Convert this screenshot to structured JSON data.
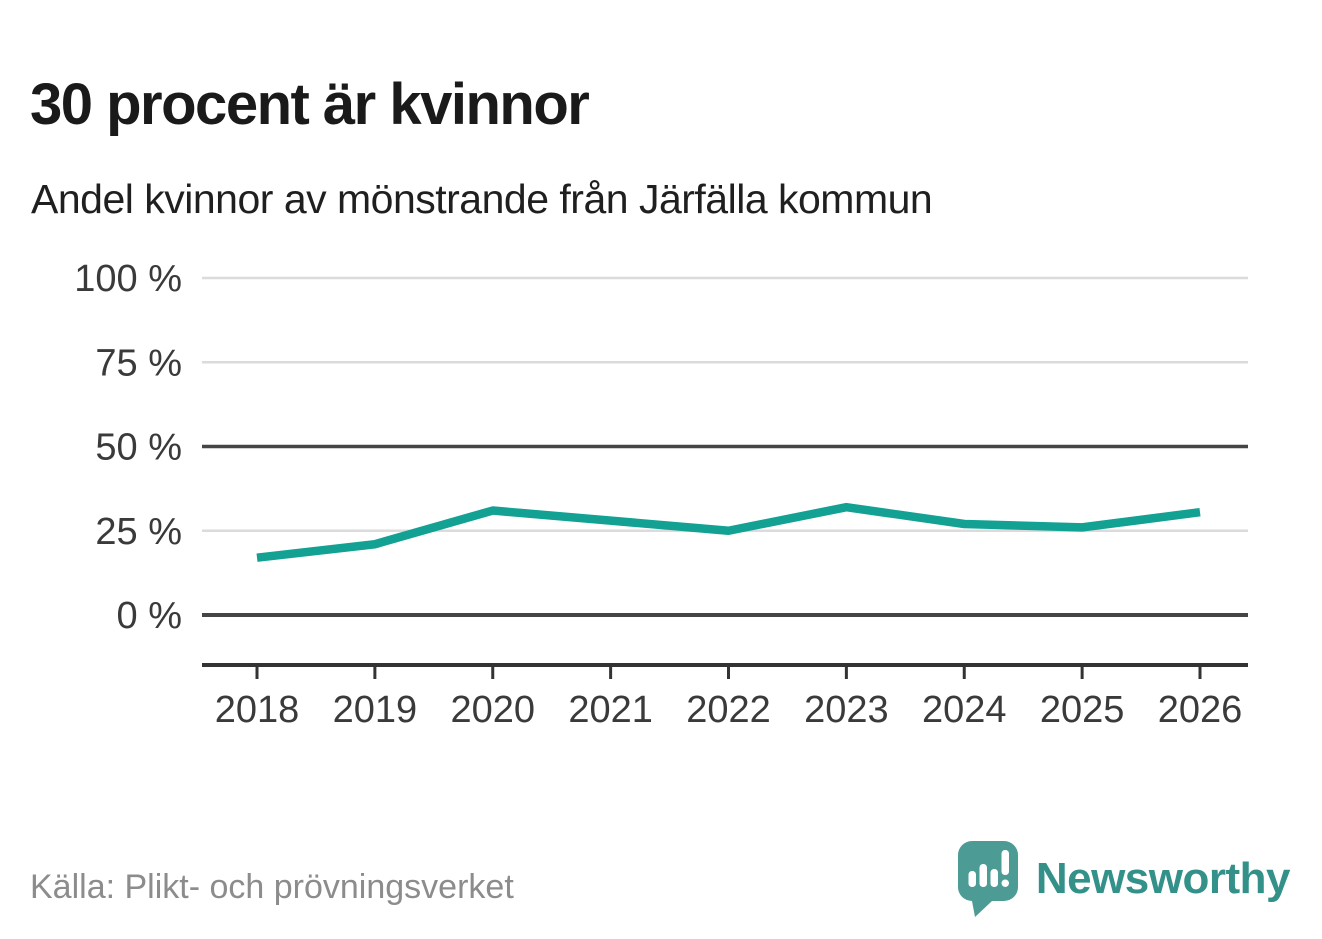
{
  "header": {
    "title": "30 procent är kvinnor",
    "subtitle": "Andel kvinnor av mönstrande från Järfälla kommun"
  },
  "chart_data": {
    "type": "line",
    "title": "30 procent är kvinnor",
    "subtitle": "Andel kvinnor av mönstrande från Järfälla kommun",
    "x": [
      "2018",
      "2019",
      "2020",
      "2021",
      "2022",
      "2023",
      "2024",
      "2025",
      "2026"
    ],
    "series": [
      {
        "name": "Andel kvinnor av mönstrande",
        "values": [
          17,
          21,
          31,
          28,
          25,
          32,
          27,
          26,
          30.5
        ]
      }
    ],
    "ylim": [
      0,
      100
    ],
    "yticks": [
      0,
      25,
      50,
      75,
      100
    ],
    "ytick_labels": [
      "0 %",
      "25 %",
      "50 %",
      "75 %",
      "100 %"
    ],
    "xlabel": "",
    "ylabel": "",
    "grid": "horizontal",
    "emphasized_gridlines": [
      0,
      50
    ],
    "legend_position": "none",
    "line_color": "#12a192"
  },
  "footer": {
    "source": "Källa: Plikt- och prövningsverket",
    "brand": "Newsworthy"
  },
  "colors": {
    "line": "#12a192",
    "grid_light": "#dbdbdb",
    "grid_dark": "#454545",
    "axis": "#333333",
    "logo_bubble": "#4c9b95",
    "logo_text": "#33918a",
    "source_text": "#8c8c8c"
  }
}
